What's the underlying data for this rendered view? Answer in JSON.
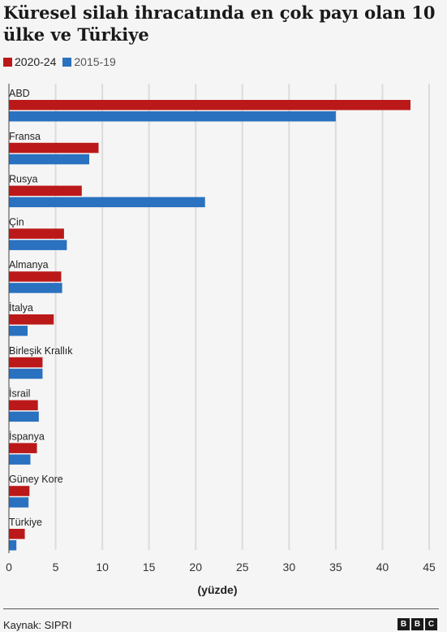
{
  "title": "Küresel silah ihracatında en çok payı olan 10 ülke ve Türkiye",
  "legend": [
    {
      "label": "2020-24",
      "color": "#bb1919"
    },
    {
      "label": "2015-19",
      "color": "#2a71c0"
    }
  ],
  "source": "Kaynak: SIPRI",
  "logo_letters": [
    "B",
    "B",
    "C"
  ],
  "chart_data": {
    "type": "bar",
    "orientation": "horizontal",
    "categories": [
      "ABD",
      "Fransa",
      "Rusya",
      "Çin",
      "Almanya",
      "İtalya",
      "Birleşik Krallık",
      "İsrail",
      "İspanya",
      "Güney Kore",
      "Türkiye"
    ],
    "series": [
      {
        "name": "2020-24",
        "color": "#bb1919",
        "values": [
          43,
          9.6,
          7.8,
          5.9,
          5.6,
          4.8,
          3.6,
          3.1,
          3.0,
          2.2,
          1.7
        ]
      },
      {
        "name": "2015-19",
        "color": "#2a71c0",
        "values": [
          35,
          8.6,
          21,
          6.2,
          5.7,
          2.0,
          3.6,
          3.2,
          2.3,
          2.1,
          0.8
        ]
      }
    ],
    "xlabel": "(yüzde)",
    "xlim": [
      0,
      45
    ],
    "xticks": [
      "0",
      "5",
      "10",
      "15",
      "20",
      "25",
      "30",
      "35",
      "40",
      "45"
    ],
    "grid": true
  }
}
